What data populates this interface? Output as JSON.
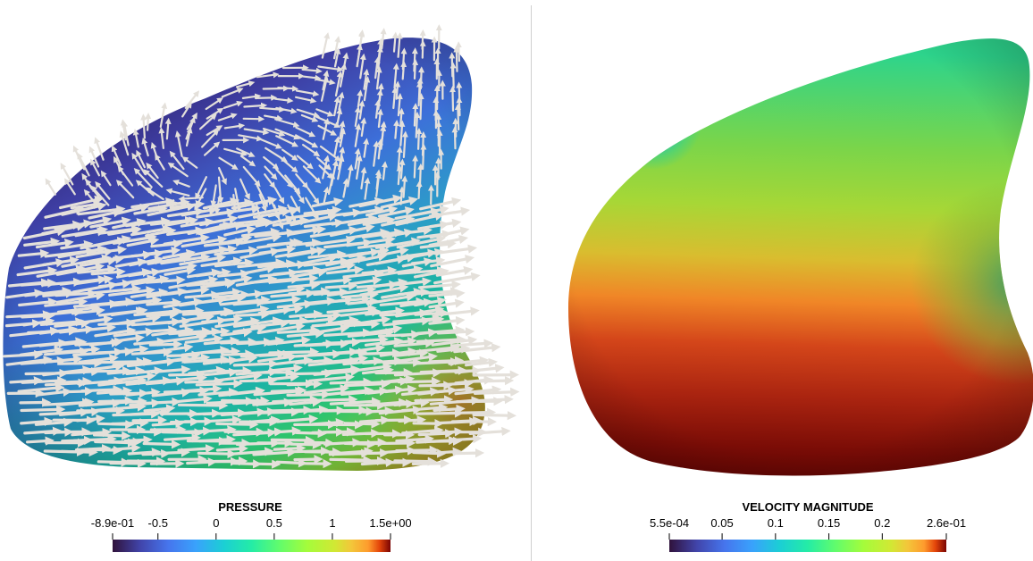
{
  "left": {
    "scalar": "PRESSURE",
    "colorbar": {
      "title": "PRESSURE",
      "range": [
        -0.89,
        1.5
      ],
      "ticks": [
        {
          "label": "-8.9e-01",
          "value": -0.89
        },
        {
          "label": "-0.5",
          "value": -0.5
        },
        {
          "label": "0",
          "value": 0
        },
        {
          "label": "0.5",
          "value": 0.5
        },
        {
          "label": "1",
          "value": 1
        },
        {
          "label": "1.5e+00",
          "value": 1.5
        }
      ],
      "colormap": "turbo"
    },
    "glyphs": "white arrow glyphs showing surface flow direction"
  },
  "right": {
    "scalar": "VELOCITY MAGNITUDE",
    "colorbar": {
      "title": "VELOCITY MAGNITUDE",
      "range": [
        0.00055,
        0.26
      ],
      "ticks": [
        {
          "label": "5.5e-04",
          "value": 0.00055
        },
        {
          "label": "0.05",
          "value": 0.05
        },
        {
          "label": "0.1",
          "value": 0.1
        },
        {
          "label": "0.15",
          "value": 0.15
        },
        {
          "label": "0.2",
          "value": 0.2
        },
        {
          "label": "2.6e-01",
          "value": 0.26
        }
      ],
      "colormap": "turbo"
    }
  },
  "colors": {
    "background": "#ffffff",
    "arrow": "#e4e0da",
    "divider": "#cfcfcf"
  }
}
